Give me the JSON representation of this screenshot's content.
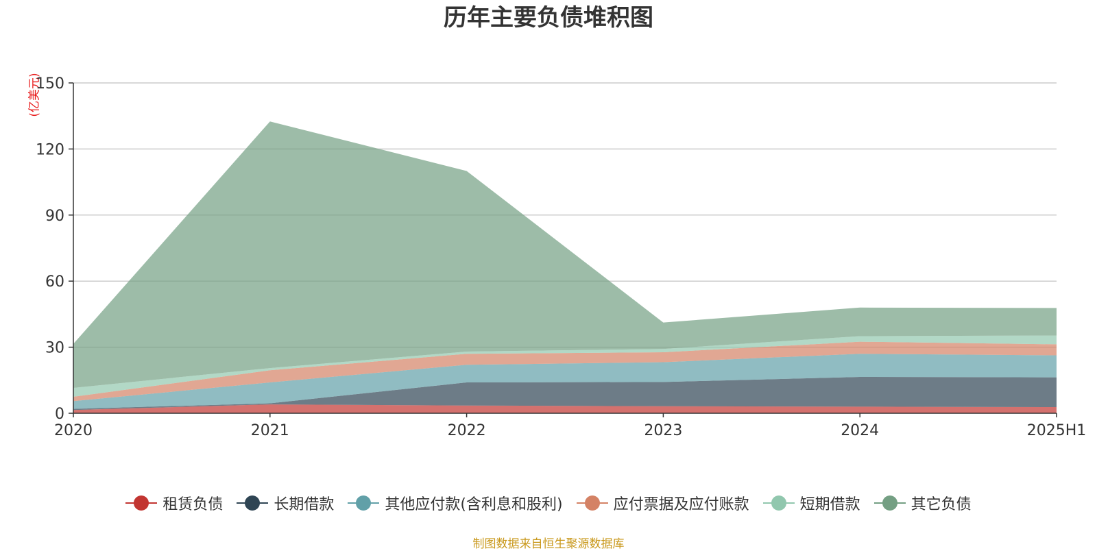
{
  "chart_data": {
    "type": "area",
    "stacked": true,
    "title": "历年主要负债堆积图",
    "ylabel": "(亿美元)",
    "xlabel": "",
    "categories": [
      "2020",
      "2021",
      "2022",
      "2023",
      "2024",
      "2025H1"
    ],
    "y_ticks": [
      "0",
      "30",
      "60",
      "90",
      "120",
      "150"
    ],
    "ylim": [
      0,
      150
    ],
    "grid": true,
    "legend_position": "bottom",
    "series": [
      {
        "name": "租赁负债",
        "color": "#c23531",
        "values": [
          1.5,
          4,
          3.5,
          3.2,
          3,
          2.8
        ]
      },
      {
        "name": "长期借款",
        "color": "#2f4554",
        "values": [
          0.5,
          0.5,
          10.5,
          11,
          13.5,
          13.5
        ]
      },
      {
        "name": "其他应付款(含利息和股利)",
        "color": "#61a0a8",
        "values": [
          3.5,
          9.5,
          8,
          9,
          10.5,
          10
        ]
      },
      {
        "name": "应付票据及应付账款",
        "color": "#d48265",
        "values": [
          2,
          5.5,
          5,
          4.5,
          5.5,
          5
        ]
      },
      {
        "name": "短期借款",
        "color": "#91c7ae",
        "values": [
          4,
          1,
          1,
          1.5,
          2.5,
          4
        ]
      },
      {
        "name": "其它负债",
        "color": "#749f83",
        "values": [
          20,
          112,
          82,
          12,
          13,
          12.5
        ]
      }
    ]
  },
  "source_note": "制图数据来自恒生聚源数据库"
}
